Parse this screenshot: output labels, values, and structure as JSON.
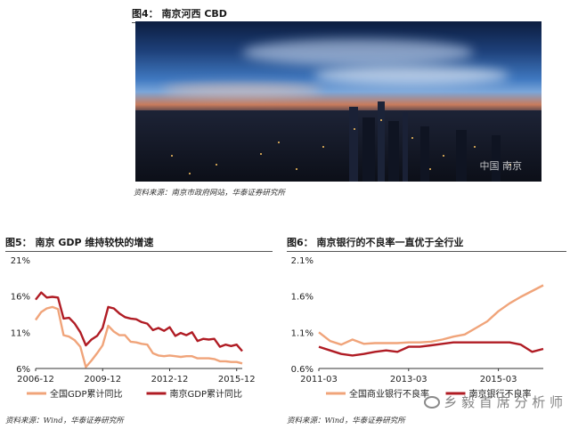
{
  "figure4": {
    "title": "图4：   南京河西 CBD",
    "source": "资料来源：南京市政府网站，华泰证券研究所",
    "photo_watermark": "中国 南京"
  },
  "figure5": {
    "title": "图5：   南京 GDP 维持较快的增速",
    "source": "资料来源：Wind，华泰证券研究所",
    "chart_data": {
      "type": "line",
      "title": "",
      "x_ticks": [
        "2006-12",
        "2009-12",
        "2012-12",
        "2015-12"
      ],
      "y_ticks": [
        "21%",
        "16%",
        "11%",
        "6%"
      ],
      "ylim": [
        6,
        21
      ],
      "legend_position": "bottom",
      "grid": false,
      "x": [
        "2006-12",
        "2007-03",
        "2007-06",
        "2007-09",
        "2007-12",
        "2008-03",
        "2008-06",
        "2008-09",
        "2008-12",
        "2009-03",
        "2009-06",
        "2009-09",
        "2009-12",
        "2010-03",
        "2010-06",
        "2010-09",
        "2010-12",
        "2011-03",
        "2011-06",
        "2011-09",
        "2011-12",
        "2012-03",
        "2012-06",
        "2012-09",
        "2012-12",
        "2013-03",
        "2013-06",
        "2013-09",
        "2013-12",
        "2014-03",
        "2014-06",
        "2014-09",
        "2014-12",
        "2015-03",
        "2015-06",
        "2015-09",
        "2015-12",
        "2016-03"
      ],
      "series": [
        {
          "name": "全国GDP累计同比",
          "color": "#f0a47a",
          "values": [
            12.7,
            13.8,
            14.3,
            14.5,
            14.2,
            10.6,
            10.4,
            9.9,
            9.0,
            6.2,
            7.1,
            8.1,
            9.2,
            11.9,
            11.1,
            10.6,
            10.6,
            9.7,
            9.6,
            9.4,
            9.3,
            8.1,
            7.8,
            7.7,
            7.8,
            7.7,
            7.6,
            7.7,
            7.7,
            7.4,
            7.4,
            7.4,
            7.3,
            7.0,
            7.0,
            6.9,
            6.9,
            6.7
          ]
        },
        {
          "name": "南京GDP累计同比",
          "color": "#b01c24",
          "values": [
            15.5,
            16.5,
            15.8,
            15.9,
            15.8,
            12.9,
            13.0,
            12.2,
            11.0,
            9.2,
            10.0,
            10.5,
            11.6,
            14.5,
            14.3,
            13.6,
            13.1,
            12.9,
            12.8,
            12.4,
            12.2,
            11.3,
            11.6,
            11.2,
            11.7,
            10.5,
            10.9,
            10.6,
            11.0,
            9.8,
            10.1,
            10.0,
            10.1,
            9.0,
            9.3,
            9.1,
            9.3,
            8.4
          ]
        }
      ]
    }
  },
  "figure6": {
    "title": "图6：   南京银行的不良率一直优于全行业",
    "source": "资料来源：Wind，华泰证券研究所",
    "chart_data": {
      "type": "line",
      "title": "",
      "x_ticks": [
        "2011-03",
        "2013-03",
        "2015-03"
      ],
      "y_ticks": [
        "2.1%",
        "1.6%",
        "1.1%",
        "0.6%"
      ],
      "ylim": [
        0.6,
        2.1
      ],
      "legend_position": "bottom",
      "grid": false,
      "x": [
        "2011-03",
        "2011-06",
        "2011-09",
        "2011-12",
        "2012-03",
        "2012-06",
        "2012-09",
        "2012-12",
        "2013-03",
        "2013-06",
        "2013-09",
        "2013-12",
        "2014-03",
        "2014-06",
        "2014-09",
        "2014-12",
        "2015-03",
        "2015-06",
        "2015-09",
        "2015-12",
        "2016-03"
      ],
      "series": [
        {
          "name": "全国商业银行不良率",
          "color": "#f0a47a",
          "values": [
            1.1,
            0.98,
            0.93,
            1.0,
            0.94,
            0.95,
            0.95,
            0.95,
            0.96,
            0.96,
            0.97,
            1.0,
            1.04,
            1.07,
            1.16,
            1.25,
            1.39,
            1.5,
            1.59,
            1.67,
            1.75
          ]
        },
        {
          "name": "南京银行不良率",
          "color": "#b01c24",
          "values": [
            0.9,
            0.85,
            0.8,
            0.78,
            0.8,
            0.83,
            0.85,
            0.83,
            0.9,
            0.9,
            0.92,
            0.94,
            0.96,
            0.96,
            0.96,
            0.96,
            0.96,
            0.96,
            0.93,
            0.83,
            0.87
          ]
        }
      ]
    }
  },
  "watermark": {
    "text": "乡 毅 首 席 分 析 师"
  }
}
